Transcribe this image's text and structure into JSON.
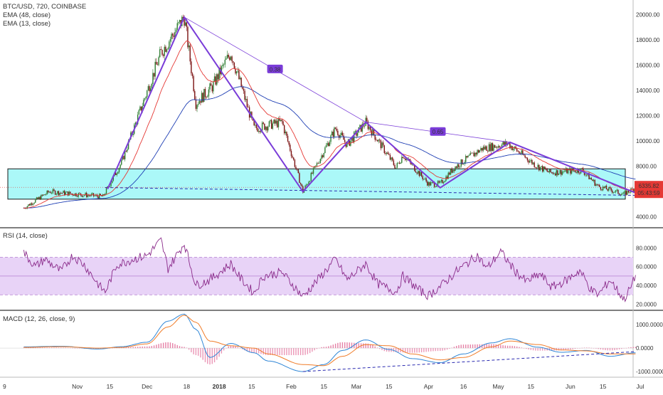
{
  "panels": {
    "main": {
      "symbol_line": "BTC/USD, 720, COINBASE",
      "indicators": [
        "EMA (48, close)",
        "EMA (13, close)"
      ],
      "price_ticks": [
        "20000.00",
        "18000.00",
        "16000.00",
        "14000.00",
        "12000.00",
        "10000.00",
        "8000.00",
        "6000.00",
        "4000.00"
      ],
      "last_price": "6335.82",
      "countdown": "05:43:59",
      "fib_labels": [
        "0.38",
        "0.65"
      ]
    },
    "rsi": {
      "title": "RSI (14, close)",
      "ticks": [
        "80.0000",
        "60.0000",
        "40.0000",
        "20.0000"
      ]
    },
    "macd": {
      "title": "MACD (12, 26, close, 9)",
      "ticks": [
        "1000.0000",
        "0.0000",
        "-1000.0000"
      ]
    }
  },
  "x_axis": {
    "labels": [
      "9",
      "Nov",
      "15",
      "Dec",
      "18",
      "2018",
      "15",
      "Feb",
      "15",
      "Mar",
      "15",
      "Apr",
      "16",
      "May",
      "15",
      "Jun",
      "15",
      "Jul"
    ]
  },
  "colors": {
    "ema48": "#1f3fb4",
    "ema13": "#e53935",
    "candle_up": "#2e7d32",
    "candle_down": "#7a1010",
    "pattern": "#7a3cd8",
    "zone_fill": "#8ff6f6",
    "zone_border": "#1a1a1a",
    "rsi_line": "#8a2a8a",
    "rsi_band": "#e8d3f7",
    "macd_line": "#2f86d6",
    "signal_line": "#f07d2a",
    "hist": "#e06090",
    "last_price_badge": "#e53935"
  },
  "chart_data": {
    "type": "candlestick",
    "symbol": "BTC/USD",
    "interval": "720",
    "exchange": "COINBASE",
    "y_range": [
      3700,
      20600
    ],
    "date_range": [
      "2017-10-09",
      "2018-06-29"
    ],
    "swing_points": [
      {
        "date": "2017-10-09",
        "price": 4700
      },
      {
        "date": "2017-10-20",
        "price": 6000
      },
      {
        "date": "2017-11-12",
        "price": 5600
      },
      {
        "date": "2017-11-20",
        "price": 8300
      },
      {
        "date": "2017-12-07",
        "price": 17000
      },
      {
        "date": "2017-12-17",
        "price": 19800
      },
      {
        "date": "2017-12-22",
        "price": 13000
      },
      {
        "date": "2017-12-29",
        "price": 14300
      },
      {
        "date": "2018-01-06",
        "price": 17000
      },
      {
        "date": "2018-01-16",
        "price": 11000
      },
      {
        "date": "2018-01-28",
        "price": 11500
      },
      {
        "date": "2018-02-06",
        "price": 6000
      },
      {
        "date": "2018-02-20",
        "price": 11000
      },
      {
        "date": "2018-02-25",
        "price": 9700
      },
      {
        "date": "2018-03-05",
        "price": 11500
      },
      {
        "date": "2018-03-18",
        "price": 7900
      },
      {
        "date": "2018-03-21",
        "price": 8900
      },
      {
        "date": "2018-04-01",
        "price": 6600
      },
      {
        "date": "2018-04-06",
        "price": 6600
      },
      {
        "date": "2018-04-12",
        "price": 7900
      },
      {
        "date": "2018-04-24",
        "price": 9400
      },
      {
        "date": "2018-05-05",
        "price": 9800
      },
      {
        "date": "2018-05-17",
        "price": 8100
      },
      {
        "date": "2018-05-23",
        "price": 7500
      },
      {
        "date": "2018-06-06",
        "price": 7700
      },
      {
        "date": "2018-06-13",
        "price": 6400
      },
      {
        "date": "2018-06-24",
        "price": 5800
      },
      {
        "date": "2018-06-29",
        "price": 6330
      }
    ],
    "pattern_points": [
      {
        "date": "2017-11-14",
        "price": 6200
      },
      {
        "date": "2017-12-17",
        "price": 19800
      },
      {
        "date": "2018-02-06",
        "price": 6000
      },
      {
        "date": "2018-03-05",
        "price": 11500
      },
      {
        "date": "2018-04-06",
        "price": 6300
      },
      {
        "date": "2018-05-06",
        "price": 9900
      },
      {
        "date": "2018-06-29",
        "price": 5900
      }
    ],
    "fib_retracements": [
      {
        "label": "0.38",
        "from": {
          "date": "2017-12-17",
          "price": 19800
        },
        "to": {
          "date": "2018-03-05",
          "price": 11500
        }
      },
      {
        "label": "0.65",
        "from": {
          "date": "2018-03-05",
          "price": 11500
        },
        "to": {
          "date": "2018-05-06",
          "price": 9900
        }
      }
    ],
    "zone": {
      "price_low": 5400,
      "price_high": 7800,
      "from": "2017-10-09",
      "to": "2018-06-29"
    },
    "support_line": {
      "from": {
        "date": "2017-11-13",
        "price": 6320
      },
      "to": {
        "date": "2018-06-29",
        "price": 5700
      }
    },
    "rsi": {
      "y_range": [
        15,
        100
      ],
      "band": [
        30,
        70
      ],
      "points": [
        {
          "date": "2017-10-09",
          "v": 75
        },
        {
          "date": "2017-10-14",
          "v": 60
        },
        {
          "date": "2017-10-18",
          "v": 68
        },
        {
          "date": "2017-10-25",
          "v": 55
        },
        {
          "date": "2017-10-30",
          "v": 72
        },
        {
          "date": "2017-11-04",
          "v": 62
        },
        {
          "date": "2017-11-11",
          "v": 38
        },
        {
          "date": "2017-11-13",
          "v": 33
        },
        {
          "date": "2017-11-18",
          "v": 62
        },
        {
          "date": "2017-11-25",
          "v": 68
        },
        {
          "date": "2017-12-01",
          "v": 72
        },
        {
          "date": "2017-12-07",
          "v": 88
        },
        {
          "date": "2017-12-10",
          "v": 58
        },
        {
          "date": "2017-12-17",
          "v": 85
        },
        {
          "date": "2017-12-22",
          "v": 40
        },
        {
          "date": "2017-12-28",
          "v": 46
        },
        {
          "date": "2018-01-06",
          "v": 63
        },
        {
          "date": "2018-01-10",
          "v": 48
        },
        {
          "date": "2018-01-16",
          "v": 32
        },
        {
          "date": "2018-01-20",
          "v": 50
        },
        {
          "date": "2018-01-28",
          "v": 54
        },
        {
          "date": "2018-02-06",
          "v": 28
        },
        {
          "date": "2018-02-12",
          "v": 45
        },
        {
          "date": "2018-02-20",
          "v": 68
        },
        {
          "date": "2018-02-25",
          "v": 46
        },
        {
          "date": "2018-03-05",
          "v": 63
        },
        {
          "date": "2018-03-10",
          "v": 42
        },
        {
          "date": "2018-03-18",
          "v": 33
        },
        {
          "date": "2018-03-21",
          "v": 50
        },
        {
          "date": "2018-03-28",
          "v": 35
        },
        {
          "date": "2018-04-01",
          "v": 29
        },
        {
          "date": "2018-04-07",
          "v": 41
        },
        {
          "date": "2018-04-13",
          "v": 55
        },
        {
          "date": "2018-04-22",
          "v": 72
        },
        {
          "date": "2018-04-26",
          "v": 58
        },
        {
          "date": "2018-05-02",
          "v": 76
        },
        {
          "date": "2018-05-08",
          "v": 56
        },
        {
          "date": "2018-05-13",
          "v": 44
        },
        {
          "date": "2018-05-19",
          "v": 52
        },
        {
          "date": "2018-05-24",
          "v": 38
        },
        {
          "date": "2018-05-30",
          "v": 45
        },
        {
          "date": "2018-06-05",
          "v": 56
        },
        {
          "date": "2018-06-10",
          "v": 35
        },
        {
          "date": "2018-06-13",
          "v": 30
        },
        {
          "date": "2018-06-18",
          "v": 46
        },
        {
          "date": "2018-06-24",
          "v": 25
        },
        {
          "date": "2018-06-27",
          "v": 38
        },
        {
          "date": "2018-06-29",
          "v": 51
        }
      ]
    },
    "macd": {
      "y_range": [
        -1150,
        1550
      ],
      "macd_line": [
        {
          "date": "2017-10-09",
          "v": 50
        },
        {
          "date": "2017-10-25",
          "v": 80
        },
        {
          "date": "2017-11-10",
          "v": -40
        },
        {
          "date": "2017-11-20",
          "v": 60
        },
        {
          "date": "2017-12-01",
          "v": 250
        },
        {
          "date": "2017-12-10",
          "v": 1150
        },
        {
          "date": "2017-12-17",
          "v": 1450
        },
        {
          "date": "2017-12-22",
          "v": 800
        },
        {
          "date": "2017-12-28",
          "v": -400
        },
        {
          "date": "2018-01-06",
          "v": 200
        },
        {
          "date": "2018-01-16",
          "v": -200
        },
        {
          "date": "2018-01-22",
          "v": -550
        },
        {
          "date": "2018-02-06",
          "v": -1000
        },
        {
          "date": "2018-02-15",
          "v": -700
        },
        {
          "date": "2018-02-23",
          "v": -100
        },
        {
          "date": "2018-03-05",
          "v": 350
        },
        {
          "date": "2018-03-15",
          "v": -60
        },
        {
          "date": "2018-03-25",
          "v": -450
        },
        {
          "date": "2018-04-06",
          "v": -620
        },
        {
          "date": "2018-04-16",
          "v": -250
        },
        {
          "date": "2018-04-28",
          "v": 220
        },
        {
          "date": "2018-05-06",
          "v": 400
        },
        {
          "date": "2018-05-18",
          "v": 40
        },
        {
          "date": "2018-05-28",
          "v": -180
        },
        {
          "date": "2018-06-08",
          "v": -100
        },
        {
          "date": "2018-06-18",
          "v": -350
        },
        {
          "date": "2018-06-29",
          "v": -200
        }
      ],
      "signal_line": [
        {
          "date": "2017-10-09",
          "v": 30
        },
        {
          "date": "2017-10-25",
          "v": 60
        },
        {
          "date": "2017-11-10",
          "v": 0
        },
        {
          "date": "2017-11-20",
          "v": 30
        },
        {
          "date": "2017-12-01",
          "v": 180
        },
        {
          "date": "2017-12-10",
          "v": 900
        },
        {
          "date": "2017-12-17",
          "v": 1400
        },
        {
          "date": "2017-12-22",
          "v": 1100
        },
        {
          "date": "2017-12-28",
          "v": 300
        },
        {
          "date": "2018-01-06",
          "v": 100
        },
        {
          "date": "2018-01-16",
          "v": 0
        },
        {
          "date": "2018-01-22",
          "v": -250
        },
        {
          "date": "2018-02-06",
          "v": -700
        },
        {
          "date": "2018-02-15",
          "v": -750
        },
        {
          "date": "2018-02-23",
          "v": -350
        },
        {
          "date": "2018-03-05",
          "v": 150
        },
        {
          "date": "2018-03-15",
          "v": 100
        },
        {
          "date": "2018-03-25",
          "v": -250
        },
        {
          "date": "2018-04-06",
          "v": -500
        },
        {
          "date": "2018-04-16",
          "v": -400
        },
        {
          "date": "2018-04-28",
          "v": 50
        },
        {
          "date": "2018-05-06",
          "v": 300
        },
        {
          "date": "2018-05-18",
          "v": 150
        },
        {
          "date": "2018-05-28",
          "v": -80
        },
        {
          "date": "2018-06-08",
          "v": -120
        },
        {
          "date": "2018-06-18",
          "v": -250
        },
        {
          "date": "2018-06-29",
          "v": -250
        }
      ],
      "trendline": {
        "from": {
          "date": "2018-02-06",
          "v": -1000
        },
        "to": {
          "date": "2018-06-29",
          "v": -150
        }
      }
    }
  }
}
